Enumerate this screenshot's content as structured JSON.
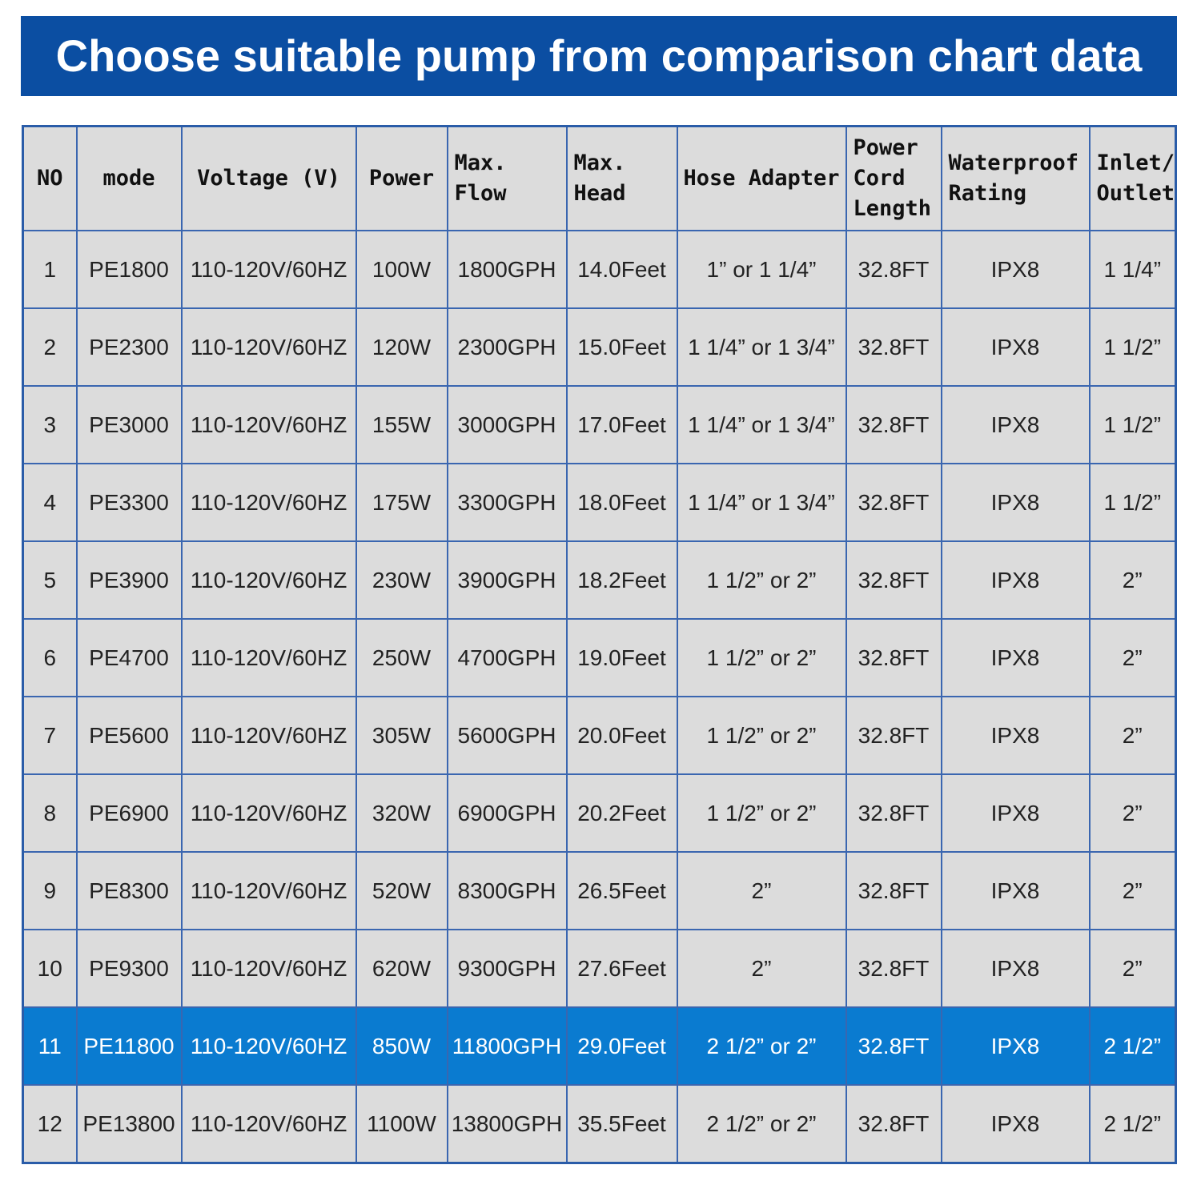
{
  "header": {
    "title": "Choose suitable pump from comparison chart data"
  },
  "table": {
    "columns": [
      "NO",
      "mode",
      "Voltage (V)",
      "Power",
      "Max. Flow",
      "Max. Head",
      "Hose Adapter",
      "Power Cord Length",
      "Waterproof Rating",
      "Inlet/ Outlet"
    ],
    "highlighted_row": 10,
    "rows": [
      [
        "1",
        "PE1800",
        "110-120V/60HZ",
        "100W",
        "1800GPH",
        "14.0Feet",
        "1” or 1 1/4”",
        "32.8FT",
        "IPX8",
        "1 1/4”"
      ],
      [
        "2",
        "PE2300",
        "110-120V/60HZ",
        "120W",
        "2300GPH",
        "15.0Feet",
        "1 1/4” or 1 3/4”",
        "32.8FT",
        "IPX8",
        "1 1/2”"
      ],
      [
        "3",
        "PE3000",
        "110-120V/60HZ",
        "155W",
        "3000GPH",
        "17.0Feet",
        "1 1/4” or 1 3/4”",
        "32.8FT",
        "IPX8",
        "1 1/2”"
      ],
      [
        "4",
        "PE3300",
        "110-120V/60HZ",
        "175W",
        "3300GPH",
        "18.0Feet",
        "1 1/4” or 1 3/4”",
        "32.8FT",
        "IPX8",
        "1 1/2”"
      ],
      [
        "5",
        "PE3900",
        "110-120V/60HZ",
        "230W",
        "3900GPH",
        "18.2Feet",
        "1 1/2” or 2”",
        "32.8FT",
        "IPX8",
        "2”"
      ],
      [
        "6",
        "PE4700",
        "110-120V/60HZ",
        "250W",
        "4700GPH",
        "19.0Feet",
        "1 1/2” or 2”",
        "32.8FT",
        "IPX8",
        "2”"
      ],
      [
        "7",
        "PE5600",
        "110-120V/60HZ",
        "305W",
        "5600GPH",
        "20.0Feet",
        "1 1/2” or 2”",
        "32.8FT",
        "IPX8",
        "2”"
      ],
      [
        "8",
        "PE6900",
        "110-120V/60HZ",
        "320W",
        "6900GPH",
        "20.2Feet",
        "1 1/2” or 2”",
        "32.8FT",
        "IPX8",
        "2”"
      ],
      [
        "9",
        "PE8300",
        "110-120V/60HZ",
        "520W",
        "8300GPH",
        "26.5Feet",
        "2”",
        "32.8FT",
        "IPX8",
        "2”"
      ],
      [
        "10",
        "PE9300",
        "110-120V/60HZ",
        "620W",
        "9300GPH",
        "27.6Feet",
        "2”",
        "32.8FT",
        "IPX8",
        "2”"
      ],
      [
        "11",
        "PE11800",
        "110-120V/60HZ",
        "850W",
        "11800GPH",
        "29.0Feet",
        "2 1/2” or 2”",
        "32.8FT",
        "IPX8",
        "2 1/2”"
      ],
      [
        "12",
        "PE13800",
        "110-120V/60HZ",
        "1100W",
        "13800GPH",
        "35.5Feet",
        "2 1/2” or 2”",
        "32.8FT",
        "IPX8",
        "2 1/2”"
      ]
    ]
  }
}
